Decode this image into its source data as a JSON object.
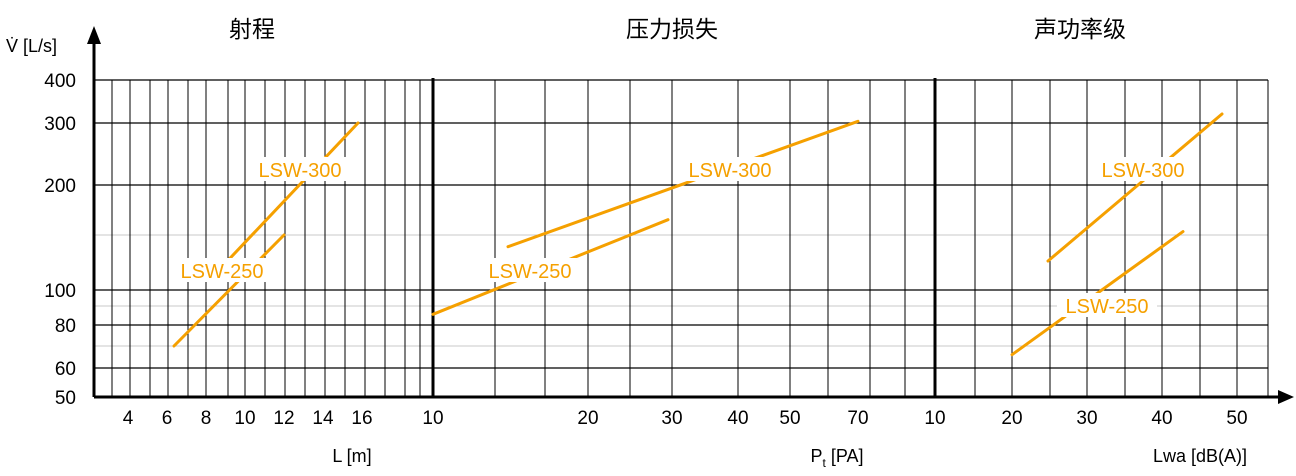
{
  "colors": {
    "series": "#f5a000",
    "grid": "#000000",
    "background": "#ffffff"
  },
  "y_axis": {
    "label": "V̇ [L/s]",
    "ticks": [
      400,
      300,
      200,
      100,
      80,
      60,
      50
    ]
  },
  "chart_data": [
    {
      "type": "line",
      "title": "射程",
      "xlabel": "L [m]",
      "ylabel": "V̇ [L/s]",
      "x_ticks": [
        4,
        6,
        8,
        10,
        12,
        14,
        16
      ],
      "y_ticks": [
        400,
        300,
        200,
        100,
        80,
        60,
        50
      ],
      "grid": true,
      "series": [
        {
          "name": "LSW-300",
          "x": [
            8.6,
            16
          ],
          "y": [
            120,
            300
          ]
        },
        {
          "name": "LSW-250",
          "x": [
            6.3,
            12
          ],
          "y": [
            70,
            150
          ]
        }
      ]
    },
    {
      "type": "line",
      "title": "压力损失",
      "xlabel": "Pt [PA]",
      "ylabel": "V̇ [L/s]",
      "x_ticks": [
        10,
        20,
        30,
        40,
        50,
        70
      ],
      "y_ticks": [
        400,
        300,
        200,
        100,
        80,
        60,
        50
      ],
      "grid": true,
      "series": [
        {
          "name": "LSW-300",
          "x": [
            15,
            70
          ],
          "y": [
            134,
            305
          ]
        },
        {
          "name": "LSW-250",
          "x": [
            10,
            30
          ],
          "y": [
            86,
            160
          ]
        }
      ]
    },
    {
      "type": "line",
      "title": "声功率级",
      "xlabel": "Lwa [dB(A)]",
      "ylabel": "V̇ [L/s]",
      "x_ticks": [
        10,
        20,
        30,
        40,
        50
      ],
      "y_ticks": [
        400,
        300,
        200,
        100,
        80,
        60,
        50
      ],
      "grid": true,
      "series": [
        {
          "name": "LSW-300",
          "x": [
            25,
            48
          ],
          "y": [
            122,
            320
          ]
        },
        {
          "name": "LSW-250",
          "x": [
            20,
            43
          ],
          "y": [
            66,
            148
          ]
        }
      ]
    }
  ],
  "xlabel_parts": {
    "pt_main": "P",
    "pt_sub": "t",
    "pt_unit": " [PA]"
  }
}
